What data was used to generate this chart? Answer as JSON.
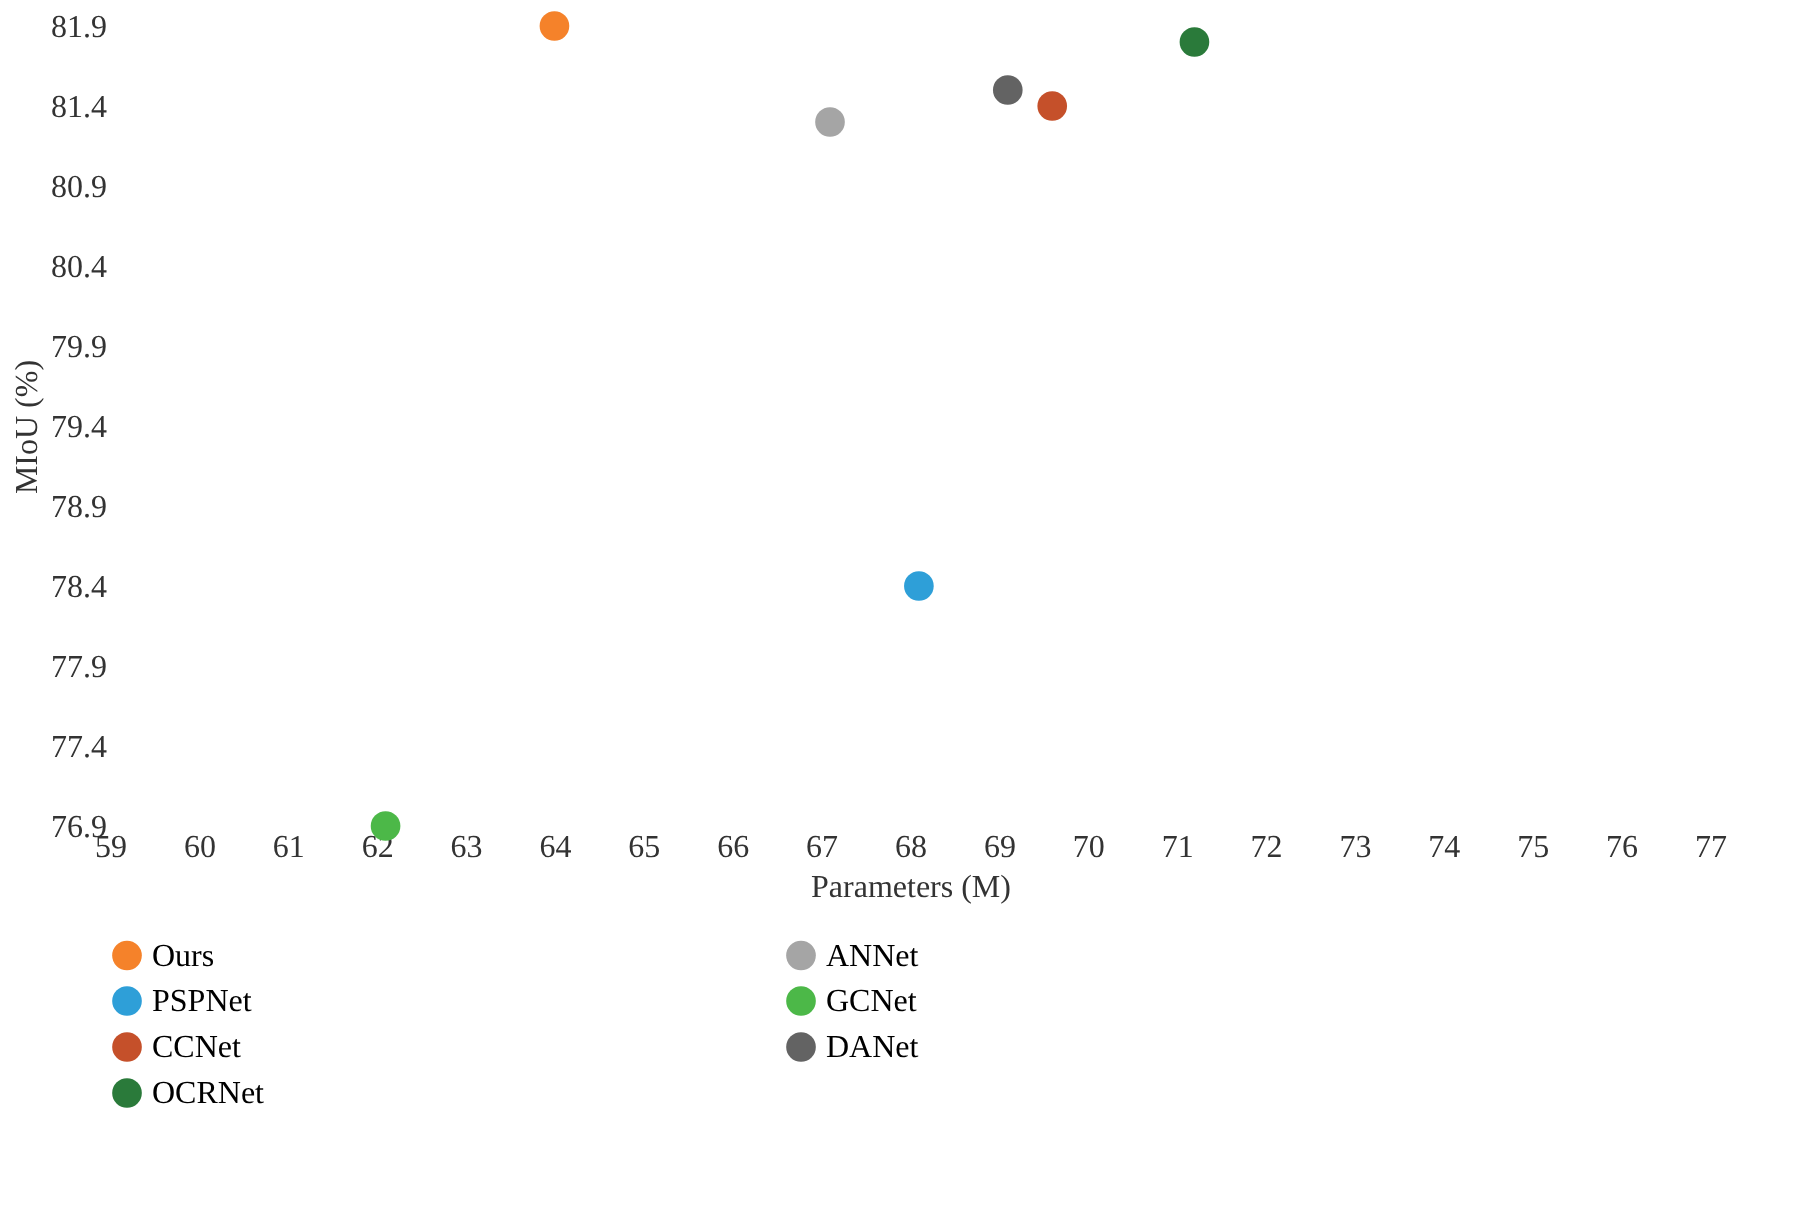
{
  "chart_data": {
    "type": "scatter",
    "xlabel": "Parameters (M)",
    "ylabel": "MIoU (%)",
    "xlim": [
      59,
      77
    ],
    "xticks": [
      59,
      60,
      61,
      62,
      63,
      64,
      65,
      66,
      67,
      68,
      69,
      70,
      71,
      72,
      73,
      74,
      75,
      76,
      77
    ],
    "ylim": [
      76.9,
      81.9
    ],
    "yticks": [
      76.9,
      77.4,
      77.9,
      78.4,
      78.9,
      79.4,
      79.9,
      80.4,
      80.9,
      81.4,
      81.9
    ],
    "grid": false,
    "legend": "bottom",
    "marker": "circle",
    "series": [
      {
        "name": "Ours",
        "color": "#f5822a",
        "x": [
          64.0
        ],
        "values": [
          81.9
        ]
      },
      {
        "name": "ANNet",
        "color": "#a5a5a5",
        "x": [
          67.1
        ],
        "values": [
          81.3
        ]
      },
      {
        "name": "PSPNet",
        "color": "#2e9fd8",
        "x": [
          68.1
        ],
        "values": [
          78.4
        ]
      },
      {
        "name": "GCNet",
        "color": "#4cb848",
        "x": [
          62.1
        ],
        "values": [
          76.9
        ]
      },
      {
        "name": "CCNet",
        "color": "#c5502a",
        "x": [
          69.6
        ],
        "values": [
          81.4
        ]
      },
      {
        "name": "DANet",
        "color": "#636363",
        "x": [
          69.1
        ],
        "values": [
          81.5
        ]
      },
      {
        "name": "OCRNet",
        "color": "#2a7a3a",
        "x": [
          71.2
        ],
        "values": [
          81.8
        ]
      }
    ]
  }
}
